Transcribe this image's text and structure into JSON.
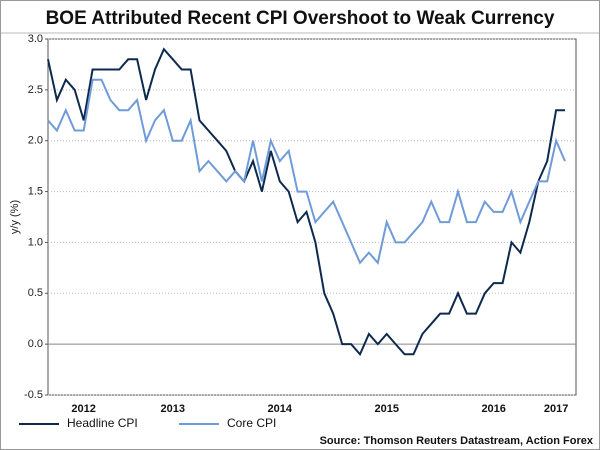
{
  "chart_data": {
    "type": "line",
    "title": "BOE Attributed Recent CPI Overshoot to Weak Currency",
    "y_label": "y/y (%)",
    "source": "Source: Thomson Reuters Datastream, Action Forex",
    "categories": [
      null,
      null,
      null,
      null,
      "2012",
      null,
      null,
      null,
      null,
      null,
      null,
      null,
      null,
      null,
      "2013",
      null,
      null,
      null,
      null,
      null,
      null,
      null,
      null,
      null,
      null,
      null,
      "2014",
      null,
      null,
      null,
      null,
      null,
      null,
      null,
      null,
      null,
      null,
      null,
      "2015",
      null,
      null,
      null,
      null,
      null,
      null,
      null,
      null,
      null,
      null,
      null,
      "2016",
      null,
      null,
      null,
      null,
      null,
      null,
      "2017",
      null
    ],
    "series": [
      {
        "name": "Headline CPI",
        "color": "#0d2a4e",
        "values": [
          2.8,
          2.4,
          2.6,
          2.5,
          2.2,
          2.7,
          2.7,
          2.7,
          2.7,
          2.8,
          2.8,
          2.4,
          2.7,
          2.9,
          2.8,
          2.7,
          2.7,
          2.2,
          2.1,
          2.0,
          1.9,
          1.7,
          1.6,
          1.8,
          1.5,
          1.9,
          1.6,
          1.5,
          1.2,
          1.3,
          1.0,
          0.5,
          0.3,
          0.0,
          0.0,
          -0.1,
          0.1,
          0.0,
          0.1,
          0.0,
          -0.1,
          -0.1,
          0.1,
          0.2,
          0.3,
          0.3,
          0.5,
          0.3,
          0.3,
          0.5,
          0.6,
          0.6,
          1.0,
          0.9,
          1.2,
          1.6,
          1.8,
          2.3,
          2.3
        ]
      },
      {
        "name": "Core CPI",
        "color": "#6f9bd8",
        "values": [
          2.2,
          2.1,
          2.3,
          2.1,
          2.1,
          2.6,
          2.6,
          2.4,
          2.3,
          2.3,
          2.4,
          2.0,
          2.2,
          2.3,
          2.0,
          2.0,
          2.2,
          1.7,
          1.8,
          1.7,
          1.6,
          1.7,
          1.6,
          2.0,
          1.6,
          2.0,
          1.8,
          1.9,
          1.5,
          1.5,
          1.2,
          1.3,
          1.4,
          1.2,
          1.0,
          0.8,
          0.9,
          0.8,
          1.2,
          1.0,
          1.0,
          1.1,
          1.2,
          1.4,
          1.2,
          1.2,
          1.5,
          1.2,
          1.2,
          1.4,
          1.3,
          1.3,
          1.5,
          1.2,
          1.4,
          1.6,
          1.6,
          2.0,
          1.8
        ]
      }
    ],
    "ylim": [
      -0.5,
      3.0
    ],
    "yticks": [
      {
        "value": -0.5,
        "label": "-0.5"
      },
      {
        "value": 0,
        "label": "0.0"
      },
      {
        "value": 0.5,
        "label": "0.5"
      },
      {
        "value": 1,
        "label": "1.0"
      },
      {
        "value": 1.5,
        "label": "1.5"
      },
      {
        "value": 2,
        "label": "2.0"
      },
      {
        "value": 2.5,
        "label": "2.5"
      },
      {
        "value": 3,
        "label": "3.0"
      }
    ],
    "grid": true
  }
}
